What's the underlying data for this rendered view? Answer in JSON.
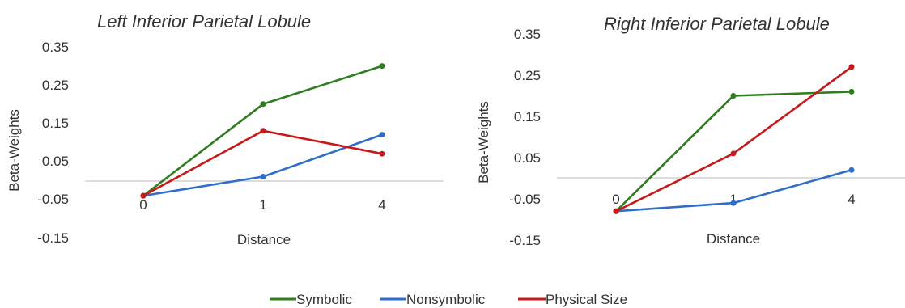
{
  "chart_data": [
    {
      "type": "line",
      "title": "Left Inferior Parietal Lobule",
      "xlabel": "Distance",
      "ylabel": "Beta-Weights",
      "categories": [
        "0",
        "1",
        "4"
      ],
      "ylim": [
        -0.15,
        0.35
      ],
      "yticks": [
        "0.35",
        "0.25",
        "0.15",
        "0.05",
        "-0.05",
        "-0.15"
      ],
      "grid": false,
      "series": [
        {
          "name": "Symbolic",
          "color": "#2e7d1f",
          "values": [
            -0.04,
            0.2,
            0.3
          ]
        },
        {
          "name": "Nonsymbolic",
          "color": "#2f6ec8",
          "values": [
            -0.04,
            0.01,
            0.12
          ]
        },
        {
          "name": "Physical Size",
          "color": "#c61a1a",
          "values": [
            -0.04,
            0.13,
            0.07
          ]
        }
      ]
    },
    {
      "type": "line",
      "title": "Right Inferior Parietal Lobule",
      "xlabel": "Distance",
      "ylabel": "Beta-Weights",
      "categories": [
        "0",
        "1",
        "4"
      ],
      "ylim": [
        -0.15,
        0.35
      ],
      "yticks": [
        "0.35",
        "0.25",
        "0.15",
        "0.05",
        "-0.05",
        "-0.15"
      ],
      "grid": false,
      "series": [
        {
          "name": "Symbolic",
          "color": "#2e7d1f",
          "values": [
            -0.08,
            0.2,
            0.21
          ]
        },
        {
          "name": "Nonsymbolic",
          "color": "#2f6ec8",
          "values": [
            -0.08,
            -0.06,
            0.02
          ]
        },
        {
          "name": "Physical Size",
          "color": "#c61a1a",
          "values": [
            -0.08,
            0.06,
            0.27
          ]
        }
      ]
    }
  ],
  "legend": {
    "placement": "bottom-center",
    "items": [
      {
        "label": "Symbolic",
        "color": "#2e7d1f"
      },
      {
        "label": "Nonsymbolic",
        "color": "#2f6ec8"
      },
      {
        "label": "Physical Size",
        "color": "#c61a1a"
      }
    ]
  }
}
